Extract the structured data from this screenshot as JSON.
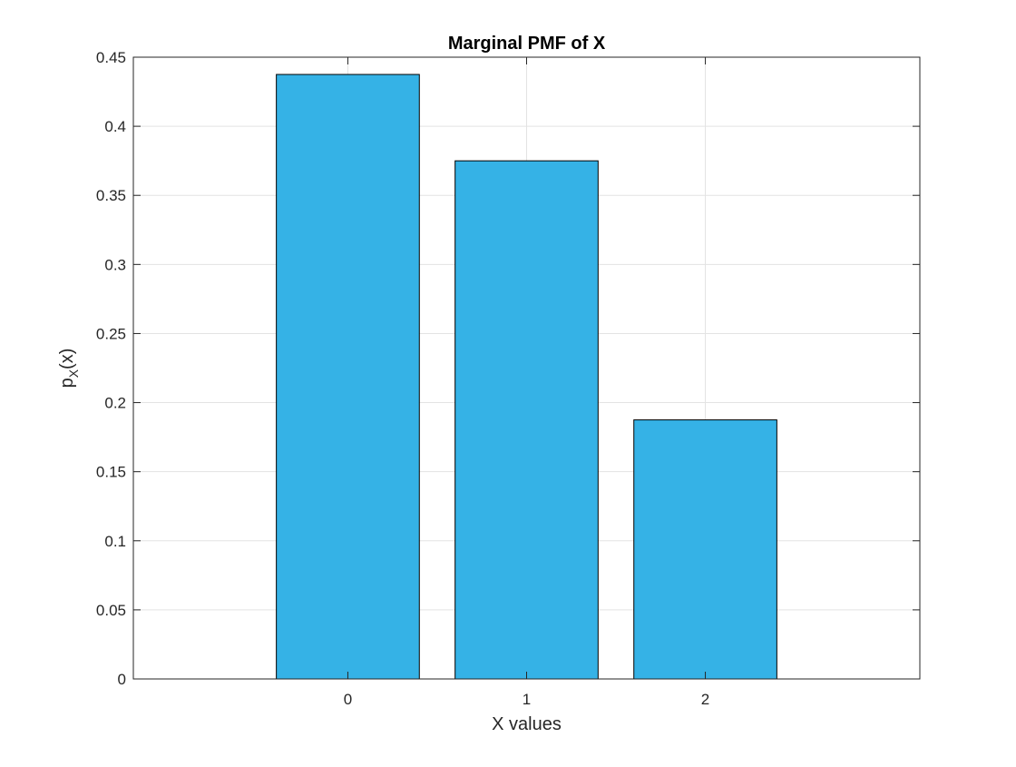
{
  "chart_data": {
    "type": "bar",
    "title": "Marginal PMF of X",
    "xlabel": "X values",
    "ylabel": {
      "base": "p",
      "subscript": "X",
      "suffix": "(x)"
    },
    "categories": [
      "0",
      "1",
      "2"
    ],
    "values": [
      0.4375,
      0.375,
      0.1875
    ],
    "xlim": [
      -1.2,
      3.2
    ],
    "ylim": [
      0,
      0.45
    ],
    "yticks": [
      0,
      0.05,
      0.1,
      0.15,
      0.2,
      0.25,
      0.3,
      0.35,
      0.4,
      0.45
    ],
    "ytick_labels": [
      "0",
      "0.05",
      "0.1",
      "0.15",
      "0.2",
      "0.25",
      "0.3",
      "0.35",
      "0.4",
      "0.45"
    ],
    "xtick_labels": [
      "0",
      "1",
      "2"
    ],
    "grid": true,
    "legend": "none",
    "colors": {
      "bar_fill": "#35B2E6",
      "bar_edge": "#000000",
      "grid": "#E3E3E3",
      "axes": "#262626"
    }
  }
}
